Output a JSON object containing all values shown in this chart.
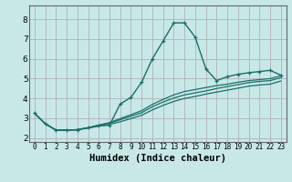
{
  "title": "",
  "xlabel": "Humidex (Indice chaleur)",
  "xlim": [
    -0.5,
    23.5
  ],
  "ylim": [
    1.8,
    8.7
  ],
  "yticks": [
    2,
    3,
    4,
    5,
    6,
    7,
    8
  ],
  "xticks": [
    0,
    1,
    2,
    3,
    4,
    5,
    6,
    7,
    8,
    9,
    10,
    11,
    12,
    13,
    14,
    15,
    16,
    17,
    18,
    19,
    20,
    21,
    22,
    23
  ],
  "bg_color": "#c8e8e8",
  "grid_color": "#b0b0b8",
  "line_color": "#1a6e68",
  "lines": [
    {
      "x": [
        0,
        1,
        2,
        3,
        4,
        5,
        6,
        7,
        8,
        9,
        10,
        11,
        12,
        13,
        14,
        15,
        16,
        17,
        18,
        19,
        20,
        21,
        22,
        23
      ],
      "y": [
        3.25,
        2.72,
        2.4,
        2.4,
        2.42,
        2.52,
        2.62,
        2.65,
        3.72,
        4.05,
        4.82,
        6.0,
        6.9,
        7.82,
        7.82,
        7.1,
        5.5,
        4.9,
        5.1,
        5.22,
        5.3,
        5.36,
        5.42,
        5.18
      ],
      "has_markers": true
    },
    {
      "x": [
        0,
        1,
        2,
        3,
        4,
        5,
        6,
        7,
        8,
        9,
        10,
        11,
        12,
        13,
        14,
        15,
        16,
        17,
        18,
        19,
        20,
        21,
        22,
        23
      ],
      "y": [
        3.25,
        2.72,
        2.4,
        2.4,
        2.42,
        2.5,
        2.6,
        2.68,
        2.82,
        2.98,
        3.15,
        3.42,
        3.65,
        3.85,
        4.0,
        4.1,
        4.22,
        4.32,
        4.42,
        4.52,
        4.62,
        4.68,
        4.72,
        4.88
      ],
      "has_markers": false
    },
    {
      "x": [
        0,
        1,
        2,
        3,
        4,
        5,
        6,
        7,
        8,
        9,
        10,
        11,
        12,
        13,
        14,
        15,
        16,
        17,
        18,
        19,
        20,
        21,
        22,
        23
      ],
      "y": [
        3.25,
        2.72,
        2.4,
        2.4,
        2.42,
        2.52,
        2.65,
        2.75,
        2.92,
        3.1,
        3.28,
        3.58,
        3.82,
        4.02,
        4.18,
        4.28,
        4.38,
        4.5,
        4.6,
        4.7,
        4.8,
        4.86,
        4.9,
        5.05
      ],
      "has_markers": false
    },
    {
      "x": [
        0,
        1,
        2,
        3,
        4,
        5,
        6,
        7,
        8,
        9,
        10,
        11,
        12,
        13,
        14,
        15,
        16,
        17,
        18,
        19,
        20,
        21,
        22,
        23
      ],
      "y": [
        3.25,
        2.72,
        2.4,
        2.4,
        2.42,
        2.52,
        2.65,
        2.78,
        2.98,
        3.18,
        3.38,
        3.7,
        3.95,
        4.18,
        4.35,
        4.45,
        4.55,
        4.65,
        4.72,
        4.82,
        4.9,
        4.95,
        5.0,
        5.15
      ],
      "has_markers": false
    }
  ]
}
